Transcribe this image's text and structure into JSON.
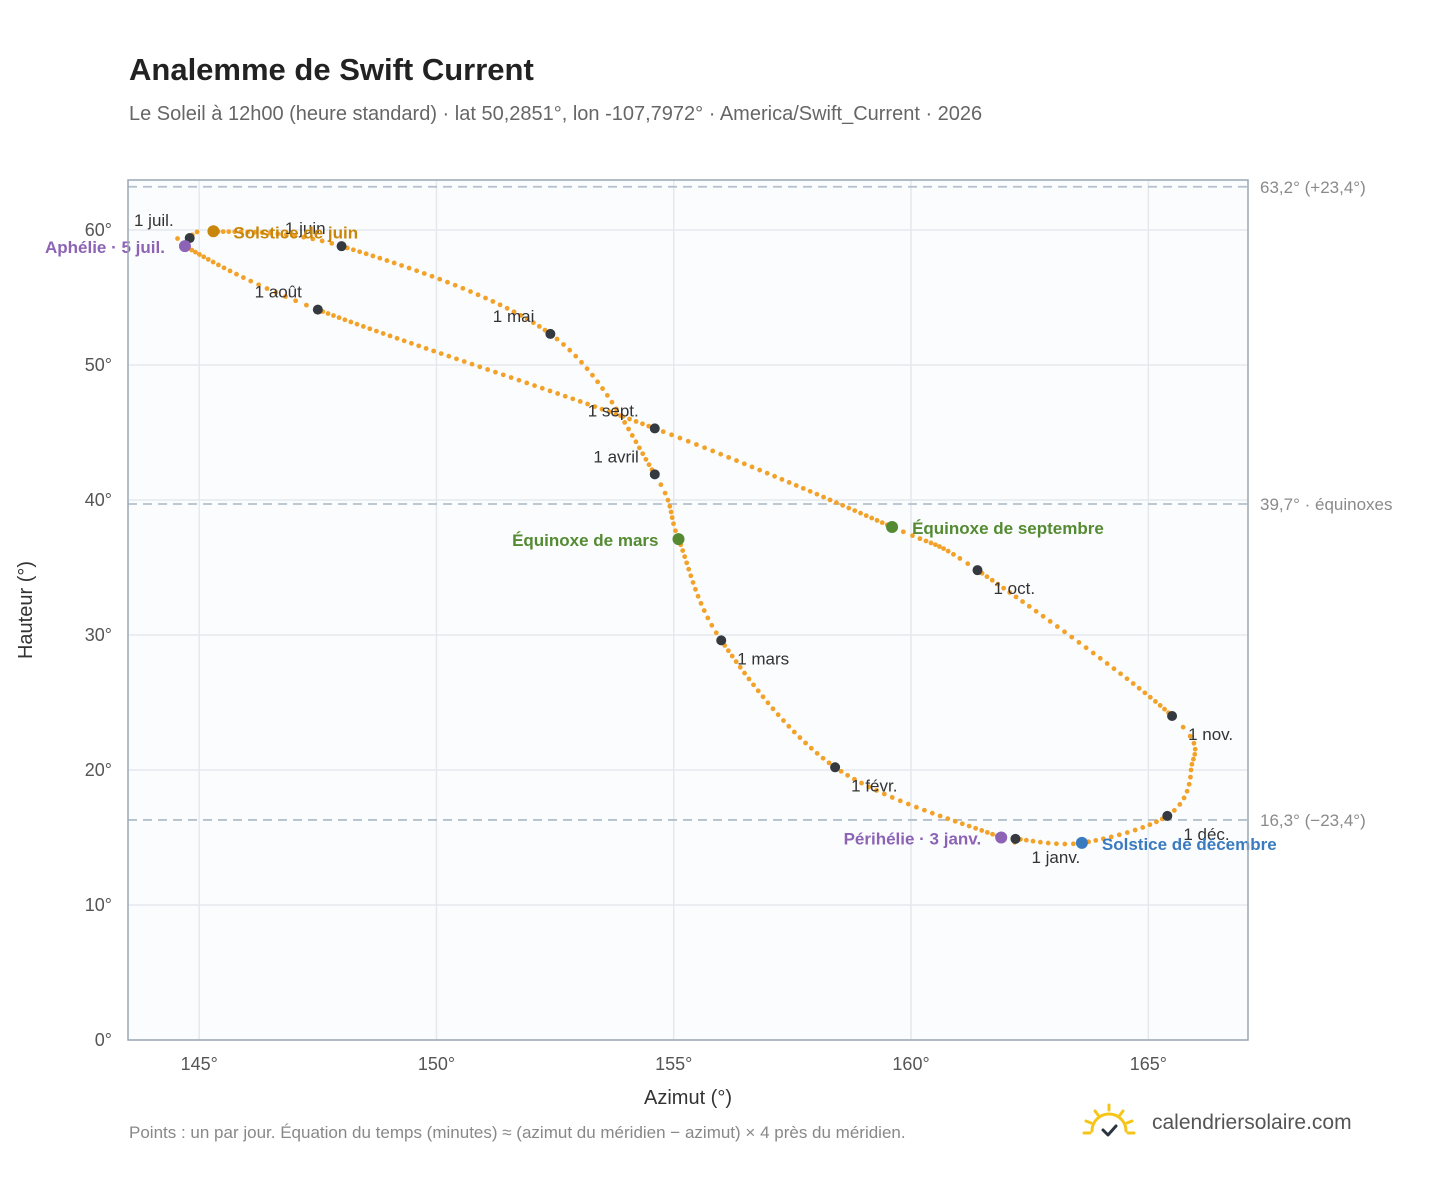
{
  "header": {
    "title": "Analemme de Swift Current",
    "subtitle": "Le Soleil à 12h00 (heure standard) · lat 50,2851°, lon -107,7972° · America/Swift_Current · 2026"
  },
  "footer": {
    "note": "Points : un par jour. Équation du temps (minutes) ≈ (azimut du méridien − azimut) × 4 près du méridien.",
    "brand": "calendriersolaire.com"
  },
  "colors": {
    "curve": "#f2a229",
    "month_marker": "#343a40",
    "june_solstice": "#c8860a",
    "december_solstice": "#3a7bbf",
    "equinox": "#548b32",
    "apsides": "#8d63b6",
    "reference_line": "#b4c0cc",
    "plot_background": "#fbfcfe",
    "plot_border": "#9aa7b4",
    "grid": "#e4e9ee",
    "brand_icon": "#f5c518"
  },
  "chart_data": {
    "type": "scatter",
    "xlabel": "Azimut (°)",
    "ylabel": "Hauteur (°)",
    "xlim": [
      143.5,
      167.1
    ],
    "ylim": [
      0,
      63.7
    ],
    "xticks": [
      145,
      150,
      155,
      160,
      165
    ],
    "yticks": [
      0,
      10,
      20,
      30,
      40,
      50,
      60
    ],
    "tick_suffix": "°",
    "grid": true,
    "series": [
      {
        "type": "line",
        "daily_points": true,
        "anchors": [
          {
            "x": 163.6,
            "y": 14.6
          },
          {
            "x": 162.2,
            "y": 14.9
          },
          {
            "x": 161.9,
            "y": 15.0
          },
          {
            "x": 158.4,
            "y": 20.2
          },
          {
            "x": 156.0,
            "y": 29.6
          },
          {
            "x": 155.1,
            "y": 37.1
          },
          {
            "x": 154.6,
            "y": 41.9
          },
          {
            "x": 152.4,
            "y": 52.3
          },
          {
            "x": 148.0,
            "y": 58.8
          },
          {
            "x": 145.3,
            "y": 59.9
          },
          {
            "x": 144.8,
            "y": 59.4
          },
          {
            "x": 144.7,
            "y": 58.8
          },
          {
            "x": 147.5,
            "y": 54.1
          },
          {
            "x": 154.6,
            "y": 45.3
          },
          {
            "x": 159.6,
            "y": 38.0
          },
          {
            "x": 161.4,
            "y": 34.8
          },
          {
            "x": 165.5,
            "y": 24.0
          },
          {
            "x": 165.9,
            "y": 20.0
          },
          {
            "x": 165.4,
            "y": 16.6
          },
          {
            "x": 163.6,
            "y": 14.6
          }
        ]
      }
    ],
    "reference_lines": [
      {
        "y": 63.2,
        "label": "63,2° (+23,4°)"
      },
      {
        "y": 39.7,
        "label": "39,7° · équinoxes"
      },
      {
        "y": 16.3,
        "label": "16,3° (−23,4°)"
      }
    ],
    "month_markers": [
      {
        "label": "1 janv.",
        "x": 162.2,
        "y": 14.9,
        "pos": "below-right"
      },
      {
        "label": "1 févr.",
        "x": 158.4,
        "y": 20.2,
        "pos": "below-right"
      },
      {
        "label": "1 mars",
        "x": 156.0,
        "y": 29.6,
        "pos": "below-right"
      },
      {
        "label": "1 avril",
        "x": 154.6,
        "y": 41.9,
        "pos": "above-left"
      },
      {
        "label": "1 mai",
        "x": 152.4,
        "y": 52.3,
        "pos": "above-left"
      },
      {
        "label": "1 juin",
        "x": 148.0,
        "y": 58.8,
        "pos": "above-left"
      },
      {
        "label": "1 juil.",
        "x": 144.8,
        "y": 59.4,
        "pos": "above-left"
      },
      {
        "label": "1 août",
        "x": 147.5,
        "y": 54.1,
        "pos": "above-left"
      },
      {
        "label": "1 sept.",
        "x": 154.6,
        "y": 45.3,
        "pos": "above-left"
      },
      {
        "label": "1 oct.",
        "x": 161.4,
        "y": 34.8,
        "pos": "below-right"
      },
      {
        "label": "1 nov.",
        "x": 165.5,
        "y": 24.0,
        "pos": "below-right"
      },
      {
        "label": "1 déc.",
        "x": 165.4,
        "y": 16.6,
        "pos": "below-right"
      }
    ],
    "events": [
      {
        "label": "Solstice de juin",
        "x": 145.3,
        "y": 59.9,
        "color_key": "june_solstice",
        "side": "right"
      },
      {
        "label": "Solstice de décembre",
        "x": 163.6,
        "y": 14.6,
        "color_key": "december_solstice",
        "side": "right"
      },
      {
        "label": "Équinoxe de mars",
        "x": 155.1,
        "y": 37.1,
        "color_key": "equinox",
        "side": "left"
      },
      {
        "label": "Équinoxe de septembre",
        "x": 159.6,
        "y": 38.0,
        "color_key": "equinox",
        "side": "right"
      },
      {
        "label": "Aphélie · 5 juil.",
        "x": 144.7,
        "y": 58.8,
        "color_key": "apsides",
        "side": "left"
      },
      {
        "label": "Périhélie · 3 janv.",
        "x": 161.9,
        "y": 15.0,
        "color_key": "apsides",
        "side": "left"
      }
    ]
  }
}
